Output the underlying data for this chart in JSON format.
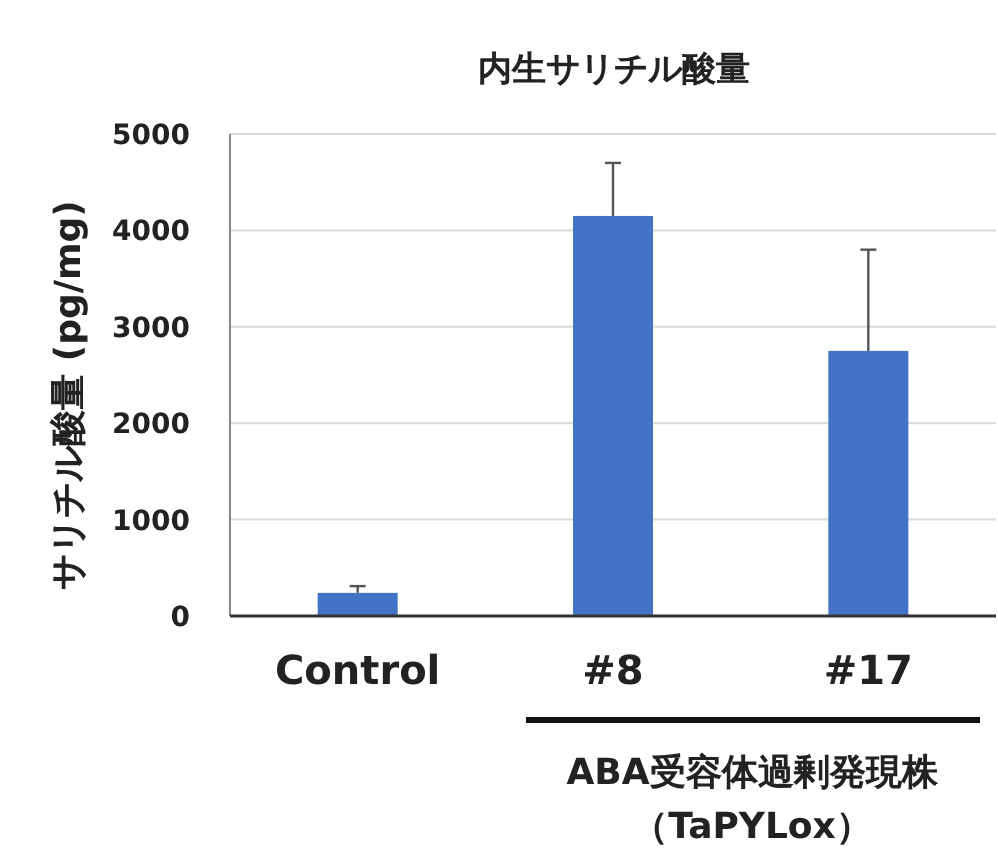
{
  "chart_data": {
    "type": "bar",
    "title": "内生サリチル酸量",
    "ylabel": "サリチル酸量 (pg/mg)",
    "categories": [
      "Control",
      "#8",
      "#17"
    ],
    "values": [
      240,
      4150,
      2750
    ],
    "errors": [
      [
        240,
        310
      ],
      [
        4150,
        4700
      ],
      [
        2750,
        3800
      ]
    ],
    "color": "#4472c4",
    "ylim": [
      0,
      5000
    ],
    "yticks": [
      0,
      1000,
      2000,
      3000,
      4000,
      5000
    ],
    "grid": "y",
    "annotations": [
      "ABA受容体過剰発現株",
      "（TaPYLox）"
    ]
  }
}
